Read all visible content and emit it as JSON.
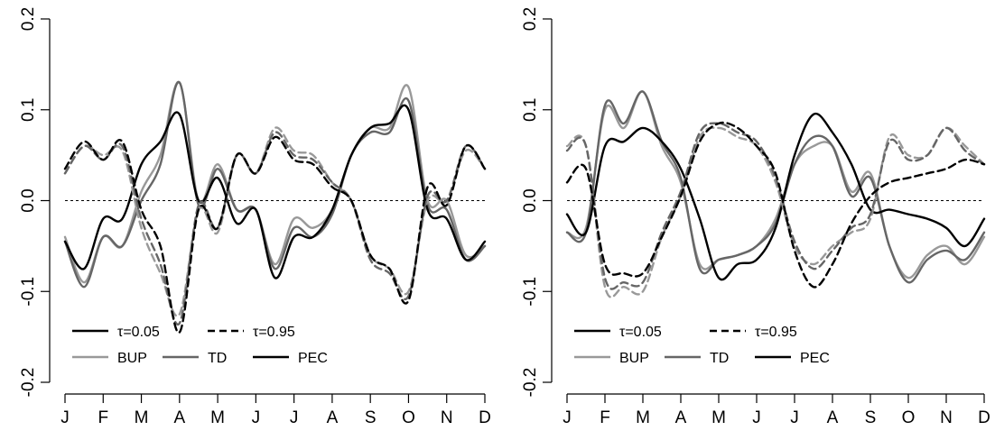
{
  "chart_data": [
    {
      "type": "line",
      "title": "",
      "xlabel": "",
      "ylabel": "",
      "ylim": [
        -0.2,
        0.2
      ],
      "yticks": [
        -0.2,
        -0.1,
        0.0,
        0.1,
        0.2
      ],
      "ytick_labels": [
        "-0.2",
        "-0.1",
        "0.0",
        "0.1",
        "0.2"
      ],
      "xticks": [
        1,
        2,
        3,
        4,
        5,
        6,
        7,
        8,
        9,
        10,
        11,
        12
      ],
      "xtick_labels": [
        "J",
        "F",
        "M",
        "A",
        "M",
        "J",
        "J",
        "A",
        "S",
        "O",
        "N",
        "D"
      ],
      "reference_line": 0.0,
      "legend": {
        "placement": "bottom-left",
        "linetypes": [
          {
            "label": "τ=0.05",
            "style": "solid"
          },
          {
            "label": "τ=0.95",
            "style": "dashed"
          }
        ],
        "series": [
          {
            "label": "BUP",
            "color": "#999999"
          },
          {
            "label": "TD",
            "color": "#666666"
          },
          {
            "label": "PEC",
            "color": "#000000"
          }
        ]
      },
      "series": [
        {
          "name": "BUP",
          "tau": "τ=0.05",
          "style": "solid",
          "color": "#999999",
          "x": [
            1,
            1.5,
            2,
            2.5,
            3,
            3.5,
            4,
            4.5,
            5,
            5.5,
            6,
            6.5,
            7,
            7.5,
            8,
            8.5,
            9,
            9.5,
            10,
            10.5,
            11,
            11.5,
            12
          ],
          "y": [
            -0.04,
            -0.09,
            -0.04,
            -0.05,
            0.01,
            0.05,
            0.13,
            0.0,
            0.04,
            -0.01,
            -0.01,
            -0.07,
            -0.02,
            -0.03,
            -0.01,
            0.05,
            0.08,
            0.08,
            0.125,
            0.0,
            0.0,
            -0.06,
            -0.05
          ]
        },
        {
          "name": "TD",
          "tau": "τ=0.05",
          "style": "solid",
          "color": "#666666",
          "x": [
            1,
            1.5,
            2,
            2.5,
            3,
            3.5,
            4,
            4.5,
            5,
            5.5,
            6,
            6.5,
            7,
            7.5,
            8,
            8.5,
            9,
            9.5,
            10,
            10.5,
            11,
            11.5,
            12
          ],
          "y": [
            -0.045,
            -0.095,
            -0.04,
            -0.05,
            0.0,
            0.04,
            0.13,
            -0.005,
            0.035,
            -0.01,
            -0.01,
            -0.075,
            -0.03,
            -0.04,
            -0.015,
            0.05,
            0.075,
            0.075,
            0.11,
            -0.005,
            -0.01,
            -0.065,
            -0.05
          ]
        },
        {
          "name": "PEC",
          "tau": "τ=0.05",
          "style": "solid",
          "color": "#000000",
          "x": [
            1,
            1.5,
            2,
            2.5,
            3,
            3.5,
            4,
            4.5,
            5,
            5.5,
            6,
            6.5,
            7,
            7.5,
            8,
            8.5,
            9,
            9.5,
            10,
            10.5,
            11,
            11.5,
            12
          ],
          "y": [
            -0.045,
            -0.075,
            -0.02,
            -0.02,
            0.04,
            0.065,
            0.095,
            0.0,
            0.025,
            -0.025,
            -0.01,
            -0.085,
            -0.04,
            -0.04,
            -0.01,
            0.05,
            0.08,
            0.085,
            0.1,
            -0.01,
            -0.02,
            -0.065,
            -0.045
          ]
        },
        {
          "name": "BUP",
          "tau": "τ=0.95",
          "style": "dashed",
          "color": "#999999",
          "x": [
            1,
            1.5,
            2,
            2.5,
            3,
            3.5,
            4,
            4.5,
            5,
            5.5,
            6,
            6.5,
            7,
            7.5,
            8,
            8.5,
            9,
            9.5,
            10,
            10.5,
            11,
            11.5,
            12
          ],
          "y": [
            0.03,
            0.06,
            0.05,
            0.055,
            -0.03,
            -0.08,
            -0.125,
            -0.01,
            -0.035,
            0.05,
            0.03,
            0.08,
            0.055,
            0.05,
            0.02,
            0.0,
            -0.06,
            -0.075,
            -0.1,
            0.0,
            0.0,
            0.055,
            0.035
          ]
        },
        {
          "name": "TD",
          "tau": "τ=0.95",
          "style": "dashed",
          "color": "#666666",
          "x": [
            1,
            1.5,
            2,
            2.5,
            3,
            3.5,
            4,
            4.5,
            5,
            5.5,
            6,
            6.5,
            7,
            7.5,
            8,
            8.5,
            9,
            9.5,
            10,
            10.5,
            11,
            11.5,
            12
          ],
          "y": [
            0.03,
            0.06,
            0.045,
            0.06,
            -0.02,
            -0.07,
            -0.135,
            -0.005,
            -0.03,
            0.05,
            0.03,
            0.075,
            0.05,
            0.045,
            0.02,
            0.0,
            -0.065,
            -0.08,
            -0.105,
            0.005,
            0.0,
            0.06,
            0.035
          ]
        },
        {
          "name": "PEC",
          "tau": "τ=0.95",
          "style": "dashed",
          "color": "#000000",
          "x": [
            1,
            1.5,
            2,
            2.5,
            3,
            3.5,
            4,
            4.5,
            5,
            5.5,
            6,
            6.5,
            7,
            7.5,
            8,
            8.5,
            9,
            9.5,
            10,
            10.5,
            11,
            11.5,
            12
          ],
          "y": [
            0.035,
            0.065,
            0.045,
            0.065,
            -0.01,
            -0.05,
            -0.145,
            -0.01,
            -0.03,
            0.05,
            0.03,
            0.07,
            0.045,
            0.04,
            0.015,
            0.0,
            -0.06,
            -0.075,
            -0.11,
            0.015,
            -0.005,
            0.06,
            0.035
          ]
        }
      ]
    },
    {
      "type": "line",
      "title": "",
      "xlabel": "",
      "ylabel": "",
      "ylim": [
        -0.2,
        0.2
      ],
      "yticks": [
        -0.2,
        -0.1,
        0.0,
        0.1,
        0.2
      ],
      "ytick_labels": [
        "-0.2",
        "-0.1",
        "0.0",
        "0.1",
        "0.2"
      ],
      "xticks": [
        1,
        2,
        3,
        4,
        5,
        6,
        7,
        8,
        9,
        10,
        11,
        12
      ],
      "xtick_labels": [
        "J",
        "F",
        "M",
        "A",
        "M",
        "J",
        "J",
        "A",
        "S",
        "O",
        "N",
        "D"
      ],
      "reference_line": 0.0,
      "legend": {
        "placement": "bottom-left",
        "linetypes": [
          {
            "label": "τ=0.05",
            "style": "solid"
          },
          {
            "label": "τ=0.95",
            "style": "dashed"
          }
        ],
        "series": [
          {
            "label": "BUP",
            "color": "#999999"
          },
          {
            "label": "TD",
            "color": "#666666"
          },
          {
            "label": "PEC",
            "color": "#000000"
          }
        ]
      },
      "series": [
        {
          "name": "BUP",
          "tau": "τ=0.05",
          "style": "solid",
          "color": "#999999",
          "x": [
            1,
            1.5,
            2,
            2.5,
            3,
            3.5,
            4,
            4.5,
            5,
            5.5,
            6,
            6.5,
            7,
            7.5,
            8,
            8.5,
            9,
            9.5,
            10,
            10.5,
            11,
            11.5,
            12
          ],
          "y": [
            -0.035,
            -0.03,
            0.1,
            0.08,
            0.12,
            0.06,
            0.02,
            -0.07,
            -0.065,
            -0.06,
            -0.05,
            -0.02,
            0.04,
            0.06,
            0.06,
            0.01,
            0.03,
            -0.05,
            -0.085,
            -0.06,
            -0.05,
            -0.07,
            -0.04
          ]
        },
        {
          "name": "TD",
          "tau": "τ=0.05",
          "style": "solid",
          "color": "#666666",
          "x": [
            1,
            1.5,
            2,
            2.5,
            3,
            3.5,
            4,
            4.5,
            5,
            5.5,
            6,
            6.5,
            7,
            7.5,
            8,
            8.5,
            9,
            9.5,
            10,
            10.5,
            11,
            11.5,
            12
          ],
          "y": [
            -0.035,
            -0.035,
            0.105,
            0.085,
            0.12,
            0.065,
            0.025,
            -0.075,
            -0.065,
            -0.06,
            -0.05,
            -0.025,
            0.04,
            0.07,
            0.06,
            0.005,
            0.025,
            -0.05,
            -0.09,
            -0.065,
            -0.055,
            -0.065,
            -0.035
          ]
        },
        {
          "name": "PEC",
          "tau": "τ=0.05",
          "style": "solid",
          "color": "#000000",
          "x": [
            1,
            1.5,
            2,
            2.5,
            3,
            3.5,
            4,
            4.5,
            5,
            5.5,
            6,
            6.5,
            7,
            7.5,
            8,
            8.5,
            9,
            9.5,
            10,
            10.5,
            11,
            11.5,
            12
          ],
          "y": [
            -0.015,
            -0.035,
            0.06,
            0.065,
            0.08,
            0.065,
            0.035,
            -0.02,
            -0.085,
            -0.07,
            -0.065,
            -0.03,
            0.05,
            0.095,
            0.075,
            0.04,
            -0.01,
            -0.01,
            -0.015,
            -0.02,
            -0.03,
            -0.05,
            -0.02
          ]
        },
        {
          "name": "BUP",
          "tau": "τ=0.95",
          "style": "dashed",
          "color": "#999999",
          "x": [
            1,
            1.5,
            2,
            2.5,
            3,
            3.5,
            4,
            4.5,
            5,
            5.5,
            6,
            6.5,
            7,
            7.5,
            8,
            8.5,
            9,
            9.5,
            10,
            10.5,
            11,
            11.5,
            12
          ],
          "y": [
            0.06,
            0.06,
            -0.095,
            -0.095,
            -0.1,
            -0.04,
            0.005,
            0.07,
            0.08,
            0.07,
            0.06,
            0.02,
            -0.05,
            -0.07,
            -0.05,
            -0.035,
            -0.02,
            0.07,
            0.05,
            0.05,
            0.08,
            0.06,
            0.04
          ]
        },
        {
          "name": "TD",
          "tau": "τ=0.95",
          "style": "dashed",
          "color": "#666666",
          "x": [
            1,
            1.5,
            2,
            2.5,
            3,
            3.5,
            4,
            4.5,
            5,
            5.5,
            6,
            6.5,
            7,
            7.5,
            8,
            8.5,
            9,
            9.5,
            10,
            10.5,
            11,
            11.5,
            12
          ],
          "y": [
            0.055,
            0.06,
            -0.085,
            -0.09,
            -0.09,
            -0.035,
            0.01,
            0.075,
            0.085,
            0.075,
            0.065,
            0.025,
            -0.045,
            -0.075,
            -0.055,
            -0.03,
            -0.015,
            0.065,
            0.045,
            0.05,
            0.08,
            0.055,
            0.04
          ]
        },
        {
          "name": "PEC",
          "tau": "τ=0.95",
          "style": "dashed",
          "color": "#000000",
          "x": [
            1,
            1.5,
            2,
            2.5,
            3,
            3.5,
            4,
            4.5,
            5,
            5.5,
            6,
            6.5,
            7,
            7.5,
            8,
            8.5,
            9,
            9.5,
            10,
            10.5,
            11,
            11.5,
            12
          ],
          "y": [
            0.02,
            0.035,
            -0.07,
            -0.08,
            -0.08,
            -0.04,
            0.005,
            0.065,
            0.085,
            0.08,
            0.06,
            0.03,
            -0.055,
            -0.095,
            -0.07,
            -0.025,
            0.005,
            0.02,
            0.025,
            0.03,
            0.035,
            0.045,
            0.04
          ]
        }
      ]
    }
  ]
}
